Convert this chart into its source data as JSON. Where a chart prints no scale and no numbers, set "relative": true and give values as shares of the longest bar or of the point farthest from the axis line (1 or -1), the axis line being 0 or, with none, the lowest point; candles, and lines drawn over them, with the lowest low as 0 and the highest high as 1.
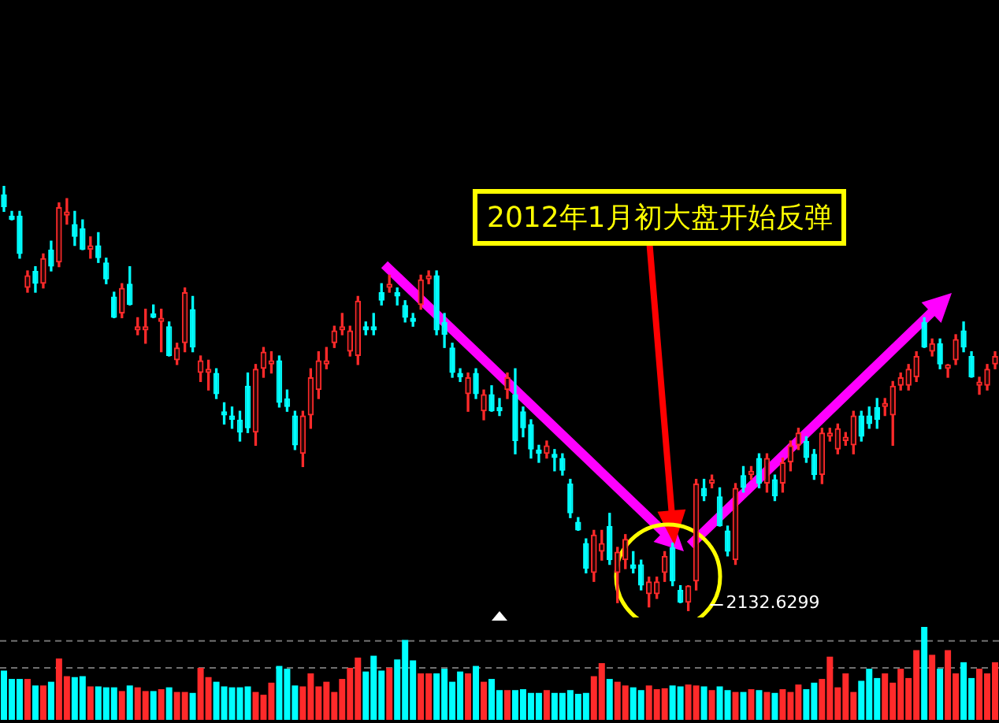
{
  "chart_data": [
    {
      "type": "candlestick",
      "relative": true,
      "categories": [
        null,
        null,
        null,
        null,
        null,
        null,
        null,
        null,
        null,
        null,
        null,
        null,
        null,
        null,
        null,
        null,
        null,
        null,
        null,
        null,
        null,
        null,
        null,
        null,
        null,
        null,
        null,
        null,
        null,
        null,
        null,
        null,
        null,
        null,
        null,
        null,
        null,
        null,
        null,
        null,
        null,
        null,
        null,
        null,
        null,
        null,
        null,
        null,
        null,
        null,
        null,
        null,
        null,
        null,
        null,
        null,
        null,
        null,
        null,
        null,
        null,
        null,
        null,
        null,
        null,
        null,
        null,
        null,
        null,
        null,
        null,
        null,
        null,
        null,
        null,
        null,
        null,
        null,
        null,
        null,
        null,
        null,
        null,
        null,
        null,
        null,
        null,
        null,
        null,
        null,
        null,
        null,
        null,
        null,
        null,
        null,
        null,
        null,
        null,
        null,
        null,
        null,
        null,
        null,
        null,
        null,
        null,
        null,
        null,
        null,
        null,
        null,
        null,
        null,
        null,
        null,
        null,
        null,
        null,
        null,
        null,
        null,
        null,
        null,
        null,
        null,
        null
      ],
      "ohlc": [
        [
          0.98,
          1.0,
          0.94,
          0.95
        ],
        [
          0.93,
          0.94,
          0.92,
          0.92
        ],
        [
          0.93,
          0.94,
          0.83,
          0.84
        ],
        [
          0.76,
          0.8,
          0.75,
          0.79
        ],
        [
          0.8,
          0.81,
          0.75,
          0.77
        ],
        [
          0.77,
          0.84,
          0.76,
          0.83
        ],
        [
          0.85,
          0.87,
          0.8,
          0.81
        ],
        [
          0.82,
          0.96,
          0.81,
          0.95
        ],
        [
          0.93,
          0.97,
          0.91,
          0.94
        ],
        [
          0.91,
          0.94,
          0.86,
          0.88
        ],
        [
          0.9,
          0.92,
          0.85,
          0.85
        ],
        [
          0.85,
          0.88,
          0.83,
          0.86
        ],
        [
          0.86,
          0.89,
          0.82,
          0.83
        ],
        [
          0.82,
          0.83,
          0.77,
          0.78
        ],
        [
          0.74,
          0.75,
          0.69,
          0.69
        ],
        [
          0.7,
          0.77,
          0.69,
          0.76
        ],
        [
          0.77,
          0.81,
          0.72,
          0.72
        ],
        [
          0.66,
          0.69,
          0.65,
          0.67
        ],
        [
          0.66,
          0.71,
          0.63,
          0.67
        ],
        [
          0.7,
          0.72,
          0.69,
          0.69
        ],
        [
          0.68,
          0.71,
          0.61,
          0.69
        ],
        [
          0.67,
          0.68,
          0.6,
          0.6
        ],
        [
          0.59,
          0.63,
          0.58,
          0.62
        ],
        [
          0.63,
          0.76,
          0.61,
          0.75
        ],
        [
          0.71,
          0.74,
          0.61,
          0.62
        ],
        [
          0.56,
          0.6,
          0.54,
          0.59
        ],
        [
          0.56,
          0.59,
          0.52,
          0.57
        ],
        [
          0.56,
          0.57,
          0.5,
          0.51
        ],
        [
          0.47,
          0.49,
          0.44,
          0.46
        ],
        [
          0.46,
          0.48,
          0.43,
          0.45
        ],
        [
          0.45,
          0.47,
          0.4,
          0.42
        ],
        [
          0.53,
          0.56,
          0.42,
          0.43
        ],
        [
          0.42,
          0.58,
          0.39,
          0.57
        ],
        [
          0.57,
          0.62,
          0.55,
          0.61
        ],
        [
          0.58,
          0.61,
          0.56,
          0.59
        ],
        [
          0.59,
          0.6,
          0.48,
          0.49
        ],
        [
          0.5,
          0.52,
          0.47,
          0.48
        ],
        [
          0.46,
          0.47,
          0.38,
          0.39
        ],
        [
          0.37,
          0.47,
          0.34,
          0.46
        ],
        [
          0.46,
          0.57,
          0.43,
          0.55
        ],
        [
          0.52,
          0.61,
          0.5,
          0.59
        ],
        [
          0.58,
          0.62,
          0.57,
          0.59
        ],
        [
          0.63,
          0.67,
          0.62,
          0.66
        ],
        [
          0.66,
          0.7,
          0.65,
          0.67
        ],
        [
          0.61,
          0.67,
          0.6,
          0.66
        ],
        [
          0.6,
          0.74,
          0.58,
          0.73
        ],
        [
          0.67,
          0.68,
          0.65,
          0.66
        ],
        [
          0.67,
          0.7,
          0.65,
          0.66
        ],
        [
          0.75,
          0.77,
          0.72,
          0.73
        ],
        [
          0.76,
          0.79,
          0.75,
          0.77
        ],
        [
          0.75,
          0.76,
          0.72,
          0.74
        ],
        [
          0.72,
          0.73,
          0.68,
          0.69
        ],
        [
          0.69,
          0.7,
          0.67,
          0.68
        ],
        [
          0.72,
          0.79,
          0.71,
          0.78
        ],
        [
          0.78,
          0.8,
          0.77,
          0.79
        ],
        [
          0.79,
          0.8,
          0.65,
          0.66
        ],
        [
          0.68,
          0.7,
          0.62,
          0.65
        ],
        [
          0.62,
          0.63,
          0.55,
          0.56
        ],
        [
          0.56,
          0.57,
          0.54,
          0.55
        ],
        [
          0.51,
          0.56,
          0.47,
          0.55
        ],
        [
          0.56,
          0.57,
          0.5,
          0.51
        ],
        [
          0.47,
          0.52,
          0.45,
          0.51
        ],
        [
          0.51,
          0.53,
          0.47,
          0.47
        ],
        [
          0.48,
          0.5,
          0.46,
          0.47
        ],
        [
          0.52,
          0.56,
          0.5,
          0.55
        ],
        [
          0.51,
          0.57,
          0.37,
          0.4
        ],
        [
          0.47,
          0.48,
          0.41,
          0.43
        ],
        [
          0.44,
          0.45,
          0.36,
          0.38
        ],
        [
          0.38,
          0.39,
          0.35,
          0.37
        ],
        [
          0.37,
          0.4,
          0.36,
          0.39
        ],
        [
          0.37,
          0.38,
          0.33,
          0.36
        ],
        [
          0.36,
          0.37,
          0.32,
          0.33
        ],
        [
          0.3,
          0.31,
          0.22,
          0.23
        ],
        [
          0.21,
          0.22,
          0.19,
          0.19
        ],
        [
          0.16,
          0.17,
          0.09,
          0.1
        ],
        [
          0.09,
          0.19,
          0.07,
          0.18
        ],
        [
          0.14,
          0.19,
          0.12,
          0.16
        ],
        [
          0.2,
          0.23,
          0.11,
          0.12
        ],
        [
          0.09,
          0.15,
          0.02,
          0.14
        ],
        [
          0.12,
          0.18,
          0.1,
          0.17
        ],
        [
          0.11,
          0.14,
          0.09,
          0.1
        ],
        [
          0.11,
          0.12,
          0.05,
          0.06
        ],
        [
          0.04,
          0.08,
          0.01,
          0.07
        ],
        [
          0.04,
          0.08,
          0.03,
          0.07
        ],
        [
          0.09,
          0.14,
          0.07,
          0.13
        ],
        [
          0.15,
          0.16,
          0.06,
          0.07
        ],
        [
          0.05,
          0.06,
          0.02,
          0.02
        ],
        [
          0.02,
          0.06,
          0.0,
          0.06
        ],
        [
          0.07,
          0.31,
          0.05,
          0.3
        ],
        [
          0.29,
          0.31,
          0.26,
          0.27
        ],
        [
          0.3,
          0.32,
          0.29,
          0.31
        ],
        [
          0.27,
          0.29,
          0.2,
          0.2
        ],
        [
          0.19,
          0.2,
          0.13,
          0.14
        ],
        [
          0.12,
          0.3,
          0.11,
          0.29
        ],
        [
          0.32,
          0.34,
          0.28,
          0.29
        ],
        [
          0.32,
          0.34,
          0.31,
          0.33
        ],
        [
          0.36,
          0.37,
          0.29,
          0.3
        ],
        [
          0.3,
          0.37,
          0.28,
          0.36
        ],
        [
          0.31,
          0.32,
          0.26,
          0.27
        ],
        [
          0.3,
          0.36,
          0.28,
          0.35
        ],
        [
          0.35,
          0.4,
          0.33,
          0.39
        ],
        [
          0.39,
          0.43,
          0.38,
          0.42
        ],
        [
          0.4,
          0.41,
          0.35,
          0.36
        ],
        [
          0.37,
          0.38,
          0.31,
          0.32
        ],
        [
          0.32,
          0.43,
          0.3,
          0.42
        ],
        [
          0.41,
          0.43,
          0.4,
          0.42
        ],
        [
          0.38,
          0.44,
          0.37,
          0.43
        ],
        [
          0.4,
          0.42,
          0.39,
          0.41
        ],
        [
          0.39,
          0.47,
          0.37,
          0.46
        ],
        [
          0.46,
          0.47,
          0.4,
          0.41
        ],
        [
          0.46,
          0.48,
          0.43,
          0.44
        ],
        [
          0.48,
          0.5,
          0.43,
          0.45
        ],
        [
          0.48,
          0.5,
          0.46,
          0.49
        ],
        [
          0.46,
          0.54,
          0.39,
          0.53
        ],
        [
          0.53,
          0.56,
          0.52,
          0.55
        ],
        [
          0.53,
          0.58,
          0.52,
          0.57
        ],
        [
          0.55,
          0.61,
          0.54,
          0.6
        ],
        [
          0.68,
          0.69,
          0.62,
          0.62
        ],
        [
          0.61,
          0.64,
          0.6,
          0.63
        ],
        [
          0.63,
          0.64,
          0.57,
          0.58
        ],
        [
          0.57,
          0.58,
          0.55,
          0.58
        ],
        [
          0.59,
          0.65,
          0.58,
          0.64
        ],
        [
          0.66,
          0.68,
          0.61,
          0.62
        ],
        [
          0.6,
          0.61,
          0.55,
          0.55
        ],
        [
          0.53,
          0.55,
          0.51,
          0.54
        ],
        [
          0.53,
          0.58,
          0.52,
          0.57
        ],
        [
          0.58,
          0.61,
          0.57,
          0.6
        ]
      ],
      "colors": [
        "#00ffff",
        "#00ffff",
        "#00ffff",
        "#ff2a2a",
        "#00ffff",
        "#ff2a2a",
        "#00ffff",
        "#ff2a2a",
        "#ff2a2a",
        "#00ffff",
        "#00ffff",
        "#ff2a2a",
        "#00ffff",
        "#00ffff",
        "#00ffff",
        "#ff2a2a",
        "#00ffff",
        "#ff2a2a",
        "#ff2a2a",
        "#00ffff",
        "#ff2a2a",
        "#00ffff",
        "#ff2a2a",
        "#ff2a2a",
        "#00ffff",
        "#ff2a2a",
        "#ff2a2a",
        "#00ffff",
        "#00ffff",
        "#00ffff",
        "#00ffff",
        "#00ffff",
        "#ff2a2a",
        "#ff2a2a",
        "#ff2a2a",
        "#00ffff",
        "#00ffff",
        "#00ffff",
        "#ff2a2a",
        "#ff2a2a",
        "#ff2a2a",
        "#ff2a2a",
        "#ff2a2a",
        "#ff2a2a",
        "#ff2a2a",
        "#ff2a2a",
        "#00ffff",
        "#00ffff",
        "#00ffff",
        "#ff2a2a",
        "#00ffff",
        "#00ffff",
        "#00ffff",
        "#ff2a2a",
        "#ff2a2a",
        "#00ffff",
        "#00ffff",
        "#00ffff",
        "#00ffff",
        "#ff2a2a",
        "#00ffff",
        "#ff2a2a",
        "#00ffff",
        "#00ffff",
        "#ff2a2a",
        "#00ffff",
        "#00ffff",
        "#00ffff",
        "#00ffff",
        "#ff2a2a",
        "#00ffff",
        "#00ffff",
        "#00ffff",
        "#00ffff",
        "#00ffff",
        "#ff2a2a",
        "#ff2a2a",
        "#00ffff",
        "#ff2a2a",
        "#ff2a2a",
        "#00ffff",
        "#00ffff",
        "#ff2a2a",
        "#ff2a2a",
        "#ff2a2a",
        "#00ffff",
        "#00ffff",
        "#ff2a2a",
        "#ff2a2a",
        "#00ffff",
        "#ff2a2a",
        "#00ffff",
        "#00ffff",
        "#ff2a2a",
        "#00ffff",
        "#ff2a2a",
        "#00ffff",
        "#ff2a2a",
        "#00ffff",
        "#ff2a2a",
        "#ff2a2a",
        "#ff2a2a",
        "#00ffff",
        "#00ffff",
        "#ff2a2a",
        "#ff2a2a",
        "#ff2a2a",
        "#ff2a2a",
        "#ff2a2a",
        "#00ffff",
        "#00ffff",
        "#00ffff",
        "#ff2a2a",
        "#ff2a2a",
        "#ff2a2a",
        "#ff2a2a",
        "#ff2a2a",
        "#00ffff",
        "#ff2a2a",
        "#00ffff",
        "#ff2a2a",
        "#ff2a2a",
        "#00ffff",
        "#00ffff",
        "#ff2a2a",
        "#ff2a2a",
        "#ff2a2a"
      ],
      "annotations": [
        "2012年1月初大盘开始反弹",
        "2132.6299"
      ]
    },
    {
      "type": "bar",
      "relative": true,
      "categories": [
        null,
        null,
        null,
        null,
        null,
        null,
        null,
        null,
        null,
        null,
        null,
        null,
        null,
        null,
        null,
        null,
        null,
        null,
        null,
        null,
        null,
        null,
        null,
        null,
        null,
        null,
        null,
        null,
        null,
        null,
        null,
        null,
        null,
        null,
        null,
        null,
        null,
        null,
        null,
        null,
        null,
        null,
        null,
        null,
        null,
        null,
        null,
        null,
        null,
        null,
        null,
        null,
        null,
        null,
        null,
        null,
        null,
        null,
        null,
        null,
        null,
        null,
        null,
        null,
        null,
        null,
        null,
        null,
        null,
        null,
        null,
        null,
        null,
        null,
        null,
        null,
        null,
        null,
        null,
        null,
        null,
        null,
        null,
        null,
        null,
        null,
        null,
        null,
        null,
        null,
        null,
        null,
        null,
        null,
        null,
        null,
        null,
        null,
        null,
        null,
        null,
        null,
        null,
        null,
        null,
        null,
        null,
        null,
        null,
        null,
        null,
        null,
        null,
        null,
        null,
        null,
        null,
        null,
        null,
        null,
        null,
        null,
        null,
        null,
        null,
        null,
        null
      ],
      "values": [
        0.53,
        0.44,
        0.44,
        0.44,
        0.37,
        0.37,
        0.41,
        0.66,
        0.47,
        0.46,
        0.47,
        0.36,
        0.36,
        0.35,
        0.35,
        0.31,
        0.37,
        0.35,
        0.31,
        0.31,
        0.33,
        0.35,
        0.3,
        0.3,
        0.29,
        0.56,
        0.46,
        0.41,
        0.36,
        0.35,
        0.35,
        0.36,
        0.3,
        0.27,
        0.4,
        0.58,
        0.55,
        0.37,
        0.36,
        0.5,
        0.36,
        0.41,
        0.3,
        0.44,
        0.56,
        0.67,
        0.52,
        0.69,
        0.53,
        0.56,
        0.65,
        0.86,
        0.64,
        0.5,
        0.5,
        0.5,
        0.55,
        0.41,
        0.52,
        0.5,
        0.58,
        0.41,
        0.44,
        0.32,
        0.32,
        0.32,
        0.33,
        0.29,
        0.29,
        0.32,
        0.29,
        0.29,
        0.32,
        0.28,
        0.29,
        0.47,
        0.61,
        0.44,
        0.41,
        0.37,
        0.35,
        0.32,
        0.37,
        0.33,
        0.34,
        0.37,
        0.36,
        0.38,
        0.37,
        0.36,
        0.32,
        0.36,
        0.32,
        0.3,
        0.3,
        0.33,
        0.32,
        0.3,
        0.29,
        0.33,
        0.3,
        0.38,
        0.33,
        0.4,
        0.44,
        0.68,
        0.35,
        0.5,
        0.3,
        0.42,
        0.55,
        0.45,
        0.5,
        0.4,
        0.55,
        0.45,
        0.75,
        1.0,
        0.7,
        0.55,
        0.75,
        0.5,
        0.62,
        0.45,
        0.55,
        0.5,
        0.62
      ],
      "colors": [
        "#00ffff",
        "#00ffff",
        "#00ffff",
        "#ff2a2a",
        "#00ffff",
        "#ff2a2a",
        "#00ffff",
        "#ff2a2a",
        "#ff2a2a",
        "#00ffff",
        "#00ffff",
        "#ff2a2a",
        "#00ffff",
        "#00ffff",
        "#00ffff",
        "#ff2a2a",
        "#00ffff",
        "#ff2a2a",
        "#ff2a2a",
        "#00ffff",
        "#ff2a2a",
        "#00ffff",
        "#ff2a2a",
        "#ff2a2a",
        "#00ffff",
        "#ff2a2a",
        "#ff2a2a",
        "#00ffff",
        "#00ffff",
        "#00ffff",
        "#00ffff",
        "#00ffff",
        "#ff2a2a",
        "#ff2a2a",
        "#ff2a2a",
        "#00ffff",
        "#00ffff",
        "#00ffff",
        "#ff2a2a",
        "#ff2a2a",
        "#ff2a2a",
        "#ff2a2a",
        "#ff2a2a",
        "#ff2a2a",
        "#ff2a2a",
        "#ff2a2a",
        "#00ffff",
        "#00ffff",
        "#00ffff",
        "#ff2a2a",
        "#00ffff",
        "#00ffff",
        "#00ffff",
        "#ff2a2a",
        "#ff2a2a",
        "#00ffff",
        "#00ffff",
        "#00ffff",
        "#00ffff",
        "#ff2a2a",
        "#00ffff",
        "#ff2a2a",
        "#00ffff",
        "#00ffff",
        "#ff2a2a",
        "#00ffff",
        "#00ffff",
        "#00ffff",
        "#00ffff",
        "#ff2a2a",
        "#00ffff",
        "#00ffff",
        "#00ffff",
        "#00ffff",
        "#00ffff",
        "#ff2a2a",
        "#ff2a2a",
        "#00ffff",
        "#ff2a2a",
        "#ff2a2a",
        "#00ffff",
        "#00ffff",
        "#ff2a2a",
        "#ff2a2a",
        "#ff2a2a",
        "#00ffff",
        "#00ffff",
        "#ff2a2a",
        "#ff2a2a",
        "#00ffff",
        "#ff2a2a",
        "#00ffff",
        "#00ffff",
        "#ff2a2a",
        "#00ffff",
        "#ff2a2a",
        "#00ffff",
        "#ff2a2a",
        "#00ffff",
        "#ff2a2a",
        "#ff2a2a",
        "#ff2a2a",
        "#00ffff",
        "#00ffff",
        "#ff2a2a",
        "#ff2a2a",
        "#ff2a2a",
        "#ff2a2a",
        "#ff2a2a",
        "#00ffff",
        "#00ffff",
        "#00ffff",
        "#ff2a2a",
        "#ff2a2a",
        "#ff2a2a",
        "#ff2a2a",
        "#ff2a2a",
        "#00ffff",
        "#ff2a2a",
        "#00ffff",
        "#ff2a2a",
        "#ff2a2a",
        "#00ffff",
        "#00ffff",
        "#ff2a2a",
        "#ff2a2a",
        "#ff2a2a"
      ],
      "ref_lines": [
        {
          "axis": "y",
          "value": 0.85,
          "color": "#707070",
          "line_style": "dashed"
        },
        {
          "axis": "y",
          "value": 0.56,
          "color": "#707070",
          "line_style": "dashed"
        }
      ]
    }
  ]
}
